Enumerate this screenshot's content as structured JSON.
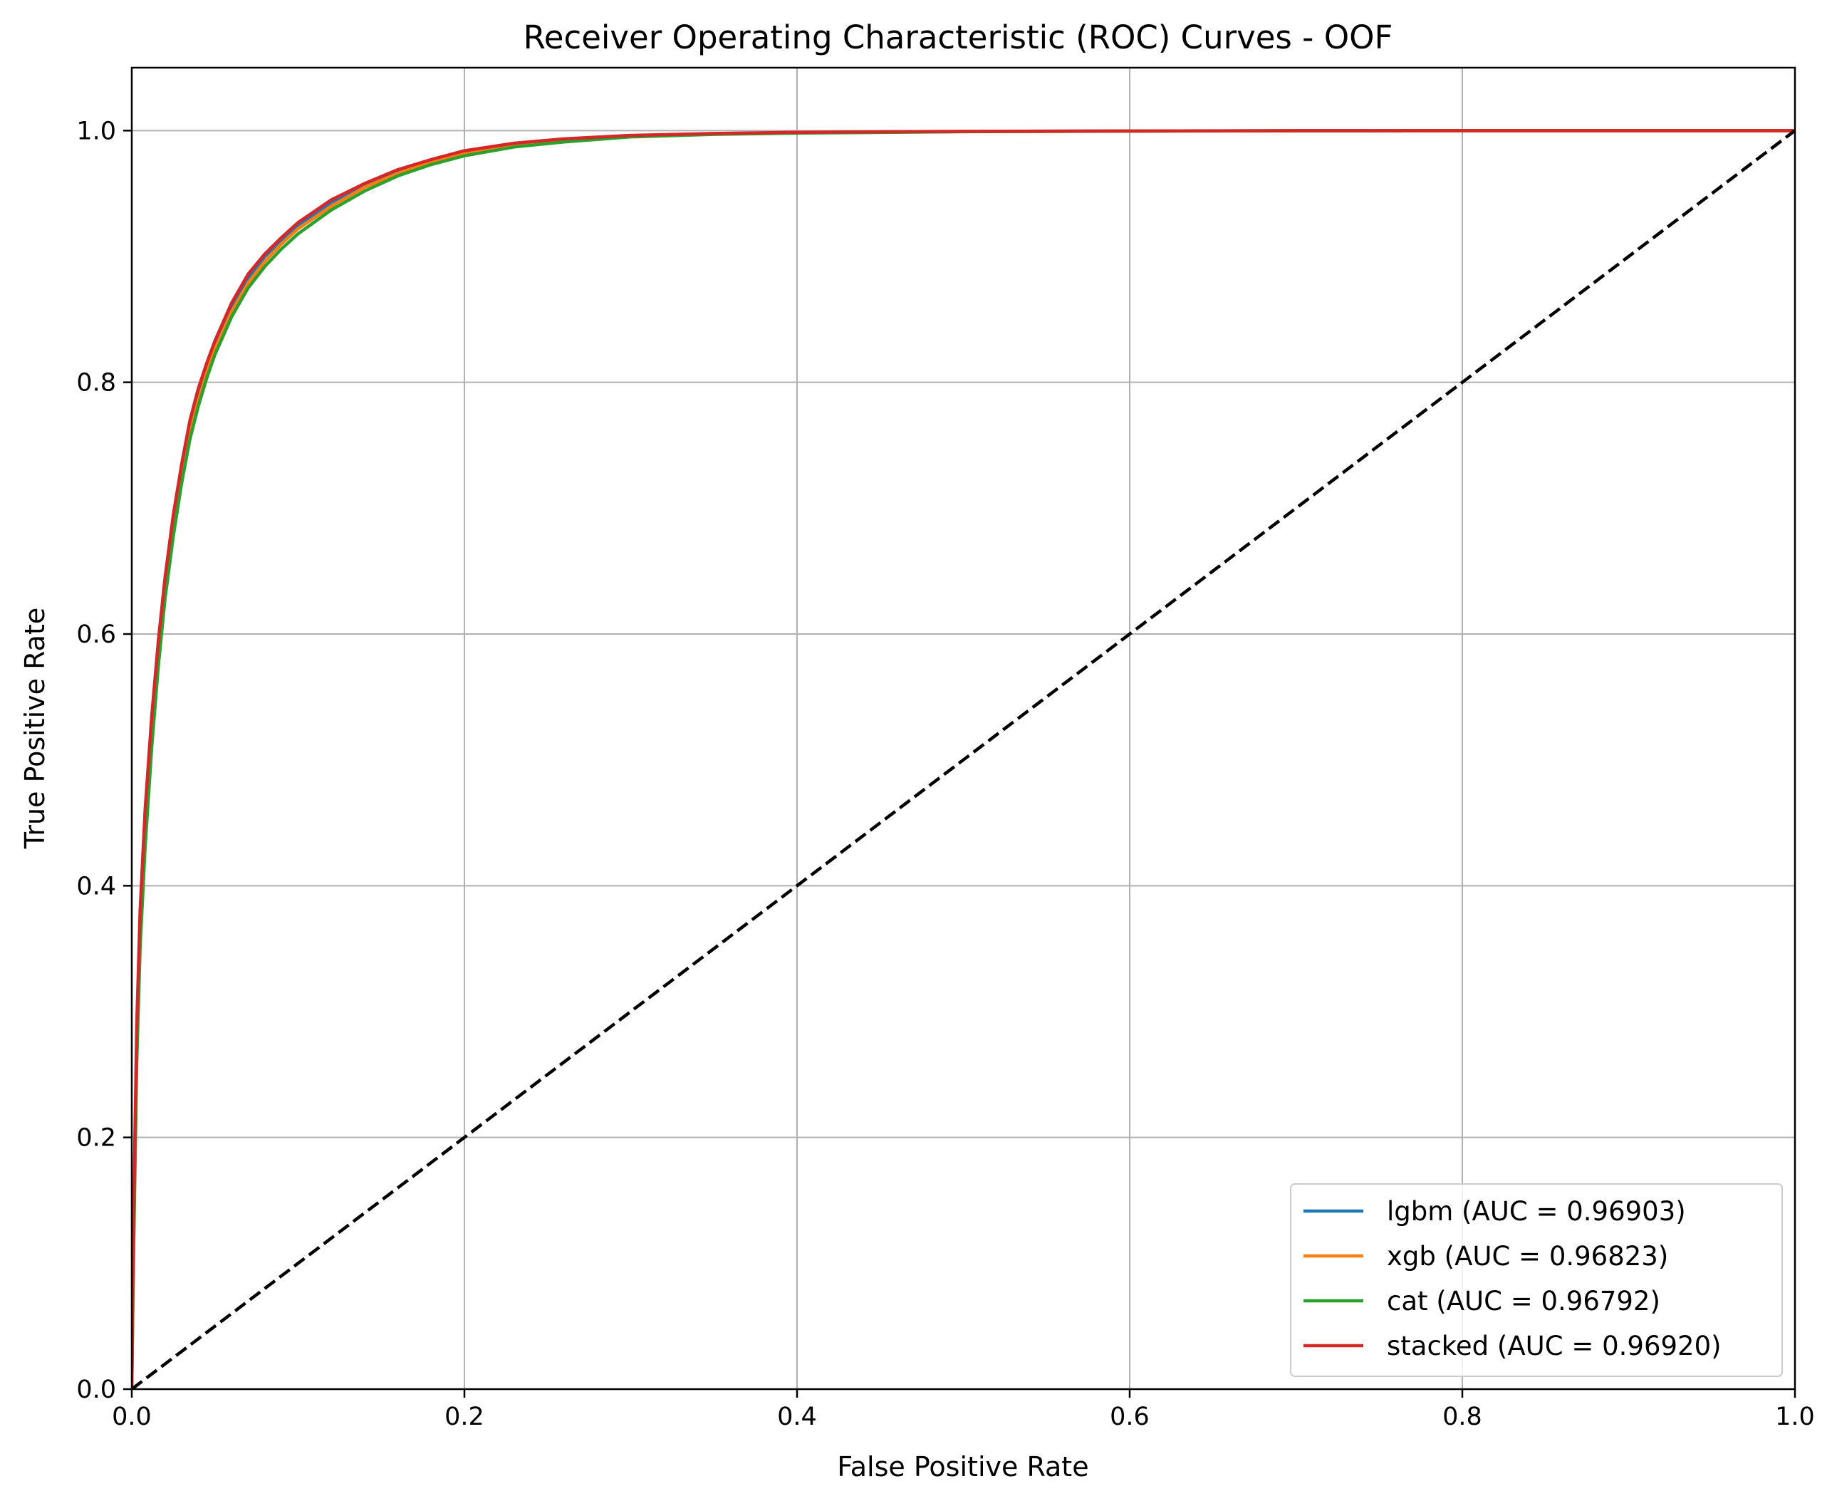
{
  "chart_data": {
    "type": "line",
    "title": "Receiver Operating Characteristic (ROC) Curves - OOF",
    "xlabel": "False Positive Rate",
    "ylabel": "True Positive Rate",
    "xlim": [
      0.0,
      1.0
    ],
    "ylim": [
      0.0,
      1.05
    ],
    "xticks": [
      0.0,
      0.2,
      0.4,
      0.6,
      0.8,
      1.0
    ],
    "xtick_labels": [
      "0.0",
      "0.2",
      "0.4",
      "0.6",
      "0.8",
      "1.0"
    ],
    "yticks": [
      0.0,
      0.2,
      0.4,
      0.6,
      0.8,
      1.0
    ],
    "ytick_labels": [
      "0.0",
      "0.2",
      "0.4",
      "0.6",
      "0.8",
      "1.0"
    ],
    "grid": true,
    "legend_position": "lower-right",
    "series": [
      {
        "name": "lgbm (AUC = 0.96903)",
        "color": "#1f77b4",
        "x": [
          0,
          0.001,
          0.003,
          0.005,
          0.008,
          0.012,
          0.016,
          0.02,
          0.025,
          0.03,
          0.035,
          0.04,
          0.045,
          0.05,
          0.06,
          0.07,
          0.08,
          0.09,
          0.1,
          0.12,
          0.14,
          0.16,
          0.18,
          0.2,
          0.23,
          0.26,
          0.3,
          0.35,
          0.4,
          0.5,
          0.6,
          0.7,
          0.8,
          0.9,
          1.0
        ],
        "y": [
          0,
          0.12,
          0.28,
          0.37,
          0.45,
          0.53,
          0.59,
          0.64,
          0.69,
          0.73,
          0.765,
          0.79,
          0.812,
          0.83,
          0.86,
          0.883,
          0.9,
          0.913,
          0.925,
          0.943,
          0.957,
          0.968,
          0.976,
          0.983,
          0.989,
          0.993,
          0.996,
          0.9975,
          0.9985,
          0.9993,
          0.9997,
          0.9999,
          1.0,
          1.0,
          1.0
        ]
      },
      {
        "name": "xgb (AUC = 0.96823)",
        "color": "#ff7f0e",
        "x": [
          0,
          0.001,
          0.003,
          0.005,
          0.008,
          0.012,
          0.016,
          0.02,
          0.025,
          0.03,
          0.035,
          0.04,
          0.045,
          0.05,
          0.06,
          0.07,
          0.08,
          0.09,
          0.1,
          0.12,
          0.14,
          0.16,
          0.18,
          0.2,
          0.23,
          0.26,
          0.3,
          0.35,
          0.4,
          0.5,
          0.6,
          0.7,
          0.8,
          0.9,
          1.0
        ],
        "y": [
          0,
          0.11,
          0.27,
          0.36,
          0.44,
          0.52,
          0.58,
          0.633,
          0.683,
          0.724,
          0.759,
          0.785,
          0.807,
          0.826,
          0.856,
          0.879,
          0.896,
          0.91,
          0.922,
          0.94,
          0.955,
          0.966,
          0.975,
          0.982,
          0.988,
          0.992,
          0.9955,
          0.9972,
          0.9983,
          0.9992,
          0.9996,
          0.9999,
          1.0,
          1.0,
          1.0
        ]
      },
      {
        "name": "cat (AUC = 0.96792)",
        "color": "#2ca02c",
        "x": [
          0,
          0.001,
          0.003,
          0.005,
          0.008,
          0.012,
          0.016,
          0.02,
          0.025,
          0.03,
          0.035,
          0.04,
          0.045,
          0.05,
          0.06,
          0.07,
          0.08,
          0.09,
          0.1,
          0.12,
          0.14,
          0.16,
          0.18,
          0.2,
          0.23,
          0.26,
          0.3,
          0.35,
          0.4,
          0.5,
          0.6,
          0.7,
          0.8,
          0.9,
          1.0
        ],
        "y": [
          0,
          0.1,
          0.26,
          0.35,
          0.43,
          0.51,
          0.575,
          0.628,
          0.678,
          0.72,
          0.755,
          0.781,
          0.803,
          0.822,
          0.852,
          0.875,
          0.892,
          0.906,
          0.918,
          0.937,
          0.952,
          0.964,
          0.973,
          0.98,
          0.987,
          0.991,
          0.995,
          0.997,
          0.998,
          0.9991,
          0.9996,
          0.9999,
          1.0,
          1.0,
          1.0
        ]
      },
      {
        "name": "stacked (AUC = 0.96920)",
        "color": "#d62728",
        "x": [
          0,
          0.001,
          0.003,
          0.005,
          0.008,
          0.012,
          0.016,
          0.02,
          0.025,
          0.03,
          0.035,
          0.04,
          0.045,
          0.05,
          0.06,
          0.07,
          0.08,
          0.09,
          0.1,
          0.12,
          0.14,
          0.16,
          0.18,
          0.2,
          0.23,
          0.26,
          0.3,
          0.35,
          0.4,
          0.5,
          0.6,
          0.7,
          0.8,
          0.9,
          1.0
        ],
        "y": [
          0,
          0.13,
          0.29,
          0.38,
          0.46,
          0.535,
          0.595,
          0.645,
          0.695,
          0.735,
          0.77,
          0.795,
          0.815,
          0.833,
          0.863,
          0.886,
          0.902,
          0.915,
          0.927,
          0.945,
          0.958,
          0.969,
          0.977,
          0.984,
          0.99,
          0.9935,
          0.9962,
          0.9977,
          0.9986,
          0.9994,
          0.9997,
          0.9999,
          1.0,
          1.0,
          1.0
        ]
      }
    ],
    "reference_line": {
      "x": [
        0,
        1
      ],
      "y": [
        0,
        1
      ],
      "color": "#000000",
      "style": "dashed"
    }
  }
}
